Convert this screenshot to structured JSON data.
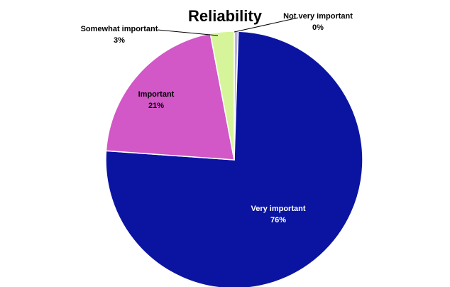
{
  "chart_data": {
    "type": "pie",
    "title": "Reliability",
    "slices": [
      {
        "label": "Not very important",
        "value": 0.5,
        "display": "0%",
        "color": "#B9B4D9",
        "label_color": "#000000"
      },
      {
        "label": "Very important",
        "value": 76,
        "display": "76%",
        "color": "#0B14A0",
        "label_color": "#ffffff"
      },
      {
        "label": "Important",
        "value": 21,
        "display": "21%",
        "color": "#D257C7",
        "label_color": "#000000"
      },
      {
        "label": "Somewhat important",
        "value": 3,
        "display": "3%",
        "color": "#D6F59A",
        "label_color": "#000000"
      }
    ],
    "start": "12 o'clock",
    "direction": "clockwise",
    "legend": "none"
  }
}
